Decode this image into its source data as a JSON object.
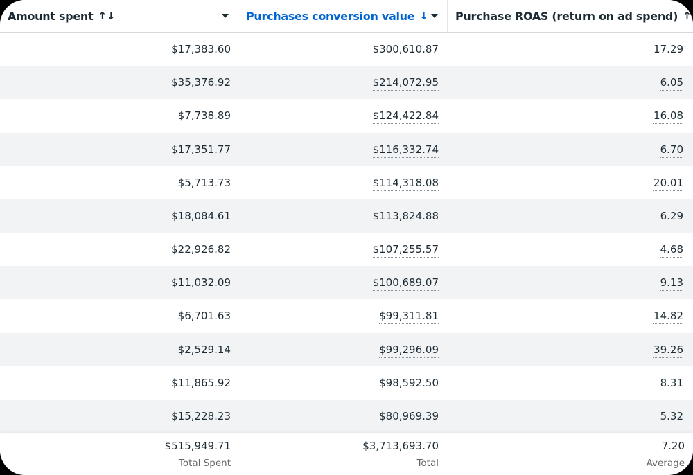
{
  "colors": {
    "accent_blue": "#0064D1",
    "text_primary": "#1C2B33",
    "text_muted": "#65676B",
    "row_stripe": "#F2F3F5",
    "border": "#D5D8DC"
  },
  "table": {
    "columns": [
      {
        "label": "Amount spent",
        "sort_glyph": "↑↓",
        "active": false
      },
      {
        "label": "Purchases conversion value",
        "sort_glyph": "↓",
        "active": true
      },
      {
        "label": "Purchase ROAS (return on ad spend)",
        "sort_glyph": "↑↓",
        "active": false
      }
    ],
    "rows": [
      {
        "amount_spent": "$17,383.60",
        "conversion_value": "$300,610.87",
        "roas": "17.29"
      },
      {
        "amount_spent": "$35,376.92",
        "conversion_value": "$214,072.95",
        "roas": "6.05"
      },
      {
        "amount_spent": "$7,738.89",
        "conversion_value": "$124,422.84",
        "roas": "16.08"
      },
      {
        "amount_spent": "$17,351.77",
        "conversion_value": "$116,332.74",
        "roas": "6.70"
      },
      {
        "amount_spent": "$5,713.73",
        "conversion_value": "$114,318.08",
        "roas": "20.01"
      },
      {
        "amount_spent": "$18,084.61",
        "conversion_value": "$113,824.88",
        "roas": "6.29"
      },
      {
        "amount_spent": "$22,926.82",
        "conversion_value": "$107,255.57",
        "roas": "4.68"
      },
      {
        "amount_spent": "$11,032.09",
        "conversion_value": "$100,689.07",
        "roas": "9.13"
      },
      {
        "amount_spent": "$6,701.63",
        "conversion_value": "$99,311.81",
        "roas": "14.82"
      },
      {
        "amount_spent": "$2,529.14",
        "conversion_value": "$99,296.09",
        "roas": "39.26"
      },
      {
        "amount_spent": "$11,865.92",
        "conversion_value": "$98,592.50",
        "roas": "8.31"
      },
      {
        "amount_spent": "$15,228.23",
        "conversion_value": "$80,969.39",
        "roas": "5.32"
      }
    ],
    "footer": {
      "amount_spent_total": "$515,949.71",
      "amount_spent_label": "Total Spent",
      "conversion_value_total": "$3,713,693.70",
      "conversion_value_label": "Total",
      "roas_average": "7.20",
      "roas_label": "Average"
    }
  }
}
